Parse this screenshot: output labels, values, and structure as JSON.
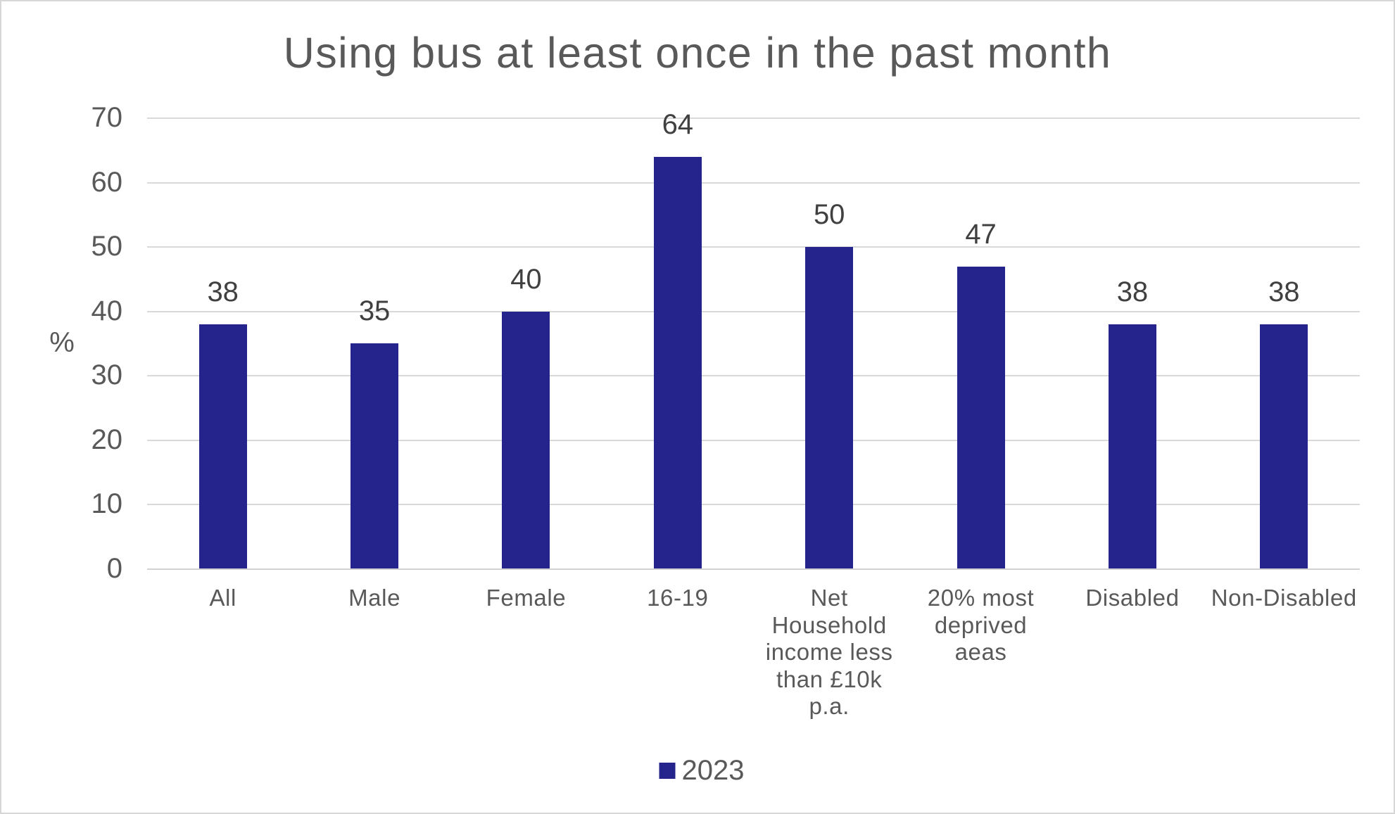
{
  "title": "Using bus at least once in the past month",
  "colors": {
    "bar": "#24248C",
    "title_text": "#595959",
    "axis_text": "#595959",
    "data_label_text": "#404040",
    "gridline": "#D9D9D9",
    "axis_line": "#D2D2D2",
    "border": "#D7D7D7"
  },
  "y_axis": {
    "label": "%",
    "tick_labels": [
      "0",
      "10",
      "20",
      "30",
      "40",
      "50",
      "60",
      "70"
    ]
  },
  "legend": {
    "items": [
      {
        "label": "2023",
        "color": "#24248C"
      }
    ]
  },
  "chart_data": {
    "type": "bar",
    "title": "Using bus at least once in the past month",
    "categories": [
      "All",
      "Male",
      "Female",
      "16-19",
      "Net\nHousehold\nincome less\nthan £10k\np.a.",
      "20% most\ndeprived\naeas",
      "Disabled",
      "Non-Disabled"
    ],
    "values": [
      38,
      35,
      40,
      64,
      50,
      47,
      38,
      38
    ],
    "series": [
      {
        "name": "2023",
        "values": [
          38,
          35,
          40,
          64,
          50,
          47,
          38,
          38
        ]
      }
    ],
    "xlabel": "",
    "ylabel": "%",
    "ylim": [
      0,
      70
    ],
    "ytick_step": 10,
    "grid": true,
    "data_labels": true,
    "legend_position": "bottom"
  }
}
